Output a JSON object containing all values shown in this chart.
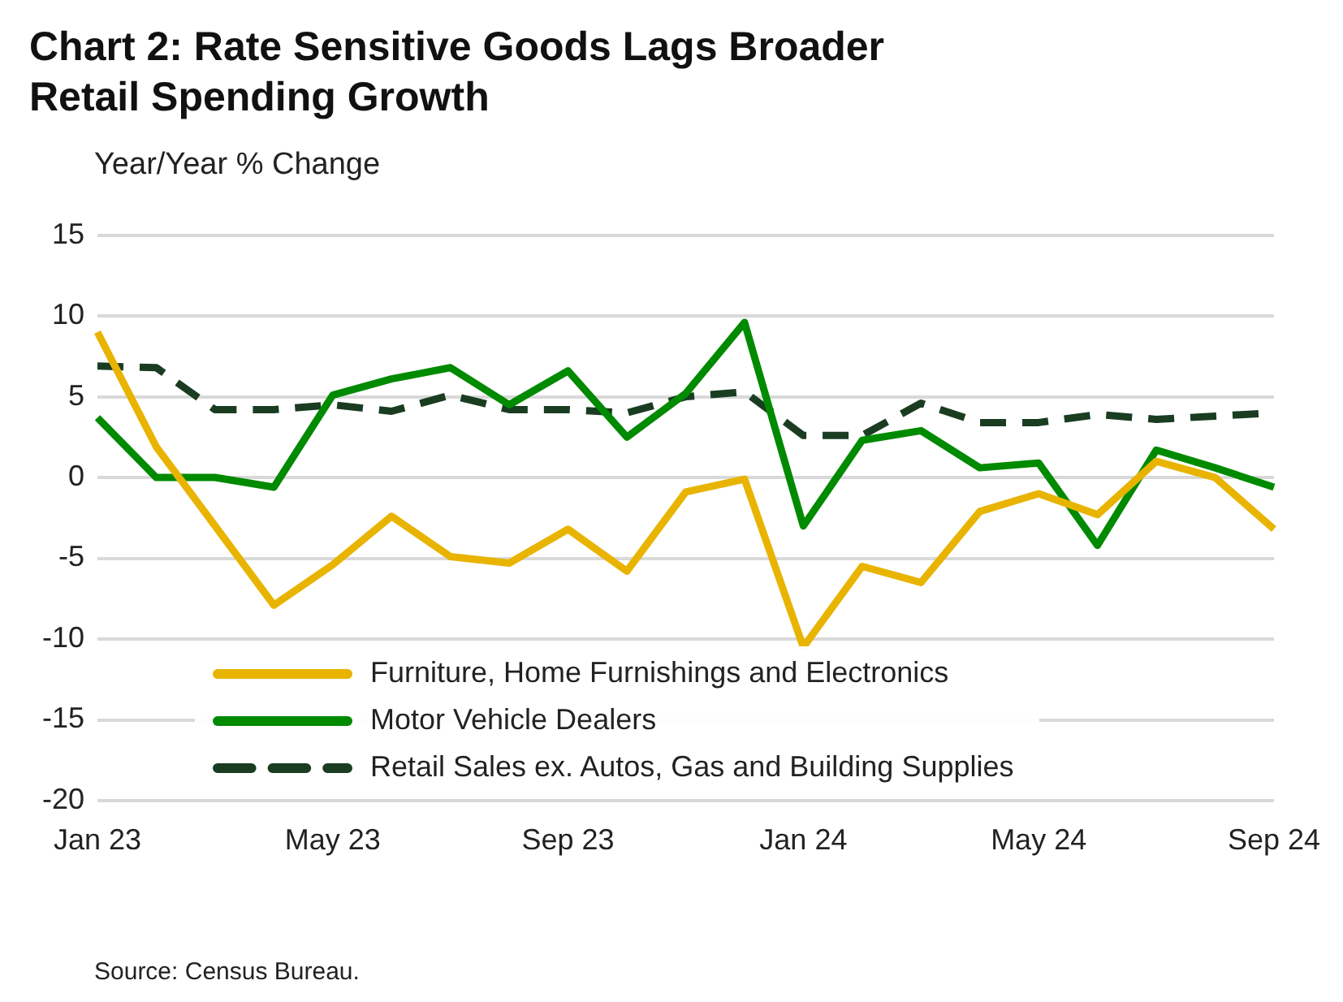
{
  "chart_data": {
    "type": "line",
    "title": "Chart 2: Rate Sensitive Goods Lags Broader Retail Spending Growth",
    "ylabel": "Year/Year % Change",
    "categories": [
      "Jan 23",
      null,
      null,
      null,
      "May 23",
      null,
      null,
      null,
      "Sep 23",
      null,
      null,
      null,
      "Jan 24",
      null,
      null,
      null,
      "May 24",
      null,
      null,
      null,
      "Sep 24"
    ],
    "series": [
      {
        "name": "Furniture, Home Furnishings and Electronics",
        "color": "#e8b400",
        "line_style": "solid",
        "values": [
          9.0,
          1.9,
          -3.0,
          -7.9,
          -5.4,
          -2.4,
          -4.9,
          -5.3,
          -3.2,
          -5.8,
          -0.9,
          -0.1,
          -10.5,
          -5.5,
          -6.5,
          -2.1,
          -1.0,
          -2.3,
          1.0,
          0.0,
          -3.2
        ]
      },
      {
        "name": "Motor Vehicle Dealers",
        "color": "#008a00",
        "line_style": "solid",
        "values": [
          3.7,
          0.0,
          0.0,
          -0.6,
          5.1,
          6.1,
          6.8,
          4.5,
          6.6,
          2.5,
          5.2,
          9.6,
          -3.0,
          2.3,
          2.9,
          0.6,
          0.9,
          -4.2,
          1.7,
          0.6,
          -0.6
        ]
      },
      {
        "name": "Retail Sales ex. Autos, Gas and Building Supplies",
        "color": "#1a3d22",
        "line_style": "dashed",
        "values": [
          6.9,
          6.8,
          4.2,
          4.2,
          4.5,
          4.1,
          5.1,
          4.2,
          4.2,
          4.0,
          5.0,
          5.3,
          2.6,
          2.6,
          4.6,
          3.4,
          3.4,
          3.9,
          3.6,
          3.8,
          4.0
        ]
      }
    ],
    "ylim": [
      -20,
      15
    ],
    "yticks": [
      -20,
      -15,
      -10,
      -5,
      0,
      5,
      10,
      15
    ],
    "grid": "y",
    "legend": "bottom left",
    "marker": "none",
    "annotations": [
      "Source: Census Bureau."
    ]
  }
}
